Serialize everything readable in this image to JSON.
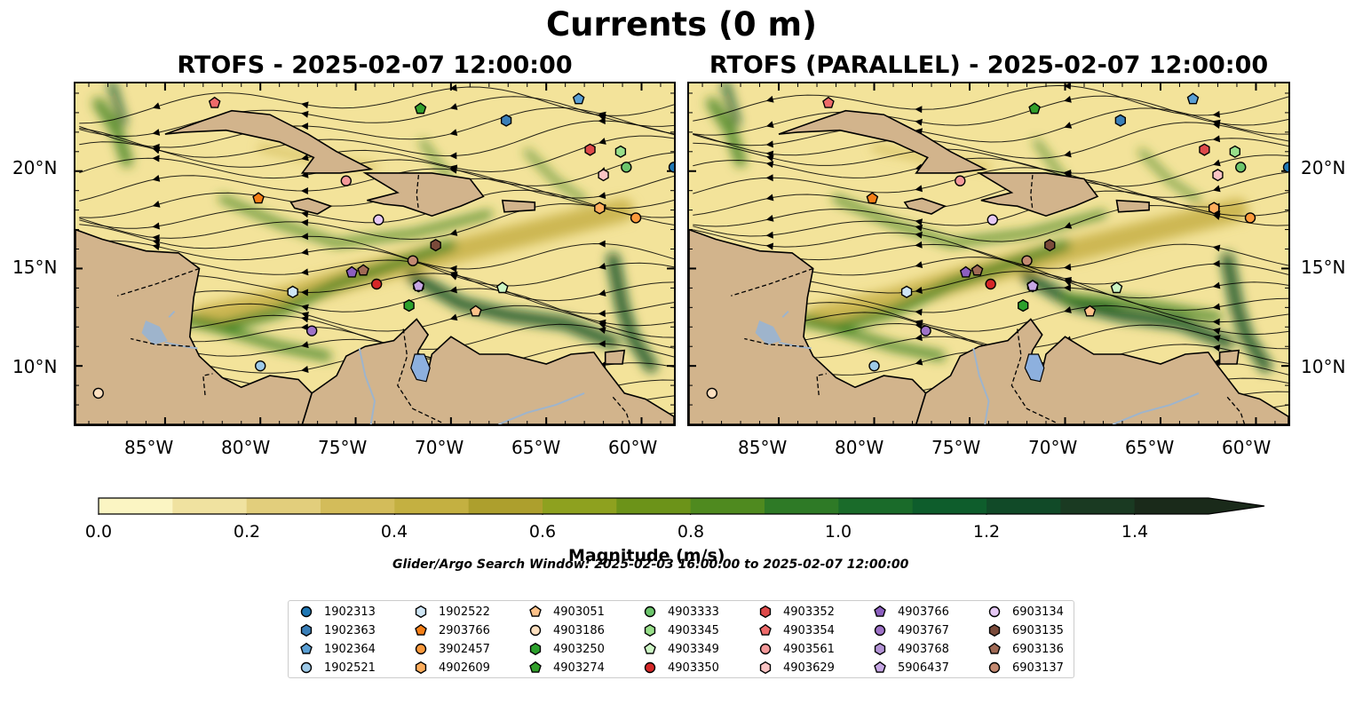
{
  "figure": {
    "title": "Currents (0 m)",
    "colorbar_label": "Magnitude (m/s)",
    "search_window": "Glider/Argo Search Window: 2025-02-03 16:00:00 to 2025-02-07 12:00:00"
  },
  "panels": [
    {
      "title": "RTOFS - 2025-02-07 12:00:00",
      "model": "RTOFS"
    },
    {
      "title": "RTOFS (PARALLEL) - 2025-02-07 12:00:00",
      "model": "RTOFS (PARALLEL)"
    }
  ],
  "axes": {
    "lon_ticks": [
      "85°W",
      "80°W",
      "75°W",
      "70°W",
      "65°W",
      "60°W"
    ],
    "lat_ticks": [
      "20°N",
      "15°N",
      "10°N"
    ],
    "lon_range": [
      -89.7,
      -58.3
    ],
    "lat_range": [
      7.0,
      24.5
    ]
  },
  "colorbar": {
    "ticks": [
      "0.0",
      "0.2",
      "0.4",
      "0.6",
      "0.8",
      "1.0",
      "1.2",
      "1.4"
    ],
    "range": [
      0.0,
      1.5
    ],
    "extend": "max",
    "colors": [
      "#fbf5c3",
      "#f0e2a0",
      "#e2ce7c",
      "#d3bc5a",
      "#c4b041",
      "#ad9f2d",
      "#8ea11f",
      "#6c9319",
      "#4f8a1f",
      "#2e7a26",
      "#1a6b2a",
      "#0e5d2c",
      "#114a28",
      "#1a3a22",
      "#1a2a1a"
    ]
  },
  "map_colors": {
    "land": "#d2b48c",
    "lake": "#8db0de",
    "river": "#9eb4cc",
    "ocean_low": "#f3e39a",
    "ocean_mid": "#c9b24a",
    "jet": "#3b7f1e",
    "jet_core": "#0d4f22"
  },
  "legend": {
    "items": [
      {
        "id": "1902313",
        "marker": "circle",
        "color": "#1f77b4"
      },
      {
        "id": "1902363",
        "marker": "hexagon",
        "color": "#3a7fb8"
      },
      {
        "id": "1902364",
        "marker": "pentagon",
        "color": "#5a9fd4"
      },
      {
        "id": "1902521",
        "marker": "circle",
        "color": "#9ecae8"
      },
      {
        "id": "1902522",
        "marker": "hexagon",
        "color": "#cfe6f5"
      },
      {
        "id": "2903766",
        "marker": "pentagon",
        "color": "#f57f17"
      },
      {
        "id": "3902457",
        "marker": "circle",
        "color": "#fb9a3c"
      },
      {
        "id": "4902609",
        "marker": "hexagon",
        "color": "#fdad5c"
      },
      {
        "id": "4903051",
        "marker": "pentagon",
        "color": "#fdc28a"
      },
      {
        "id": "4903186",
        "marker": "circle",
        "color": "#fde0c0"
      },
      {
        "id": "4903250",
        "marker": "hexagon",
        "color": "#2ca02c"
      },
      {
        "id": "4903274",
        "marker": "pentagon",
        "color": "#33a02c"
      },
      {
        "id": "4903333",
        "marker": "circle",
        "color": "#6cc56c"
      },
      {
        "id": "4903345",
        "marker": "hexagon",
        "color": "#98df8a"
      },
      {
        "id": "4903349",
        "marker": "pentagon",
        "color": "#ccf5c4"
      },
      {
        "id": "4903350",
        "marker": "circle",
        "color": "#d62728"
      },
      {
        "id": "4903352",
        "marker": "hexagon",
        "color": "#de4a4a"
      },
      {
        "id": "4903354",
        "marker": "pentagon",
        "color": "#ee6a6a"
      },
      {
        "id": "4903561",
        "marker": "circle",
        "color": "#f4999a"
      },
      {
        "id": "4903629",
        "marker": "hexagon",
        "color": "#fbc4c4"
      },
      {
        "id": "4903766",
        "marker": "pentagon",
        "color": "#8c5fbf"
      },
      {
        "id": "4903767",
        "marker": "circle",
        "color": "#9e72c7"
      },
      {
        "id": "4903768",
        "marker": "hexagon",
        "color": "#b393d6"
      },
      {
        "id": "5906437",
        "marker": "pentagon",
        "color": "#c6a6e4"
      },
      {
        "id": "6903134",
        "marker": "circle",
        "color": "#e6c8f5"
      },
      {
        "id": "6903135",
        "marker": "hexagon",
        "color": "#7a4a3a"
      },
      {
        "id": "6903136",
        "marker": "pentagon",
        "color": "#a06a55"
      },
      {
        "id": "6903137",
        "marker": "circle",
        "color": "#c48a72"
      }
    ]
  },
  "floats": [
    {
      "id": "1902313",
      "lon": -58.3,
      "lat": 20.2
    },
    {
      "id": "1902363",
      "lon": -67.1,
      "lat": 22.6
    },
    {
      "id": "1902364",
      "lon": -63.3,
      "lat": 23.7
    },
    {
      "id": "1902521",
      "lon": -80.0,
      "lat": 10.0
    },
    {
      "id": "1902522",
      "lon": -78.3,
      "lat": 13.8
    },
    {
      "id": "2903766",
      "lon": -80.1,
      "lat": 18.6
    },
    {
      "id": "3902457",
      "lon": -60.3,
      "lat": 17.6
    },
    {
      "id": "4902609",
      "lon": -62.2,
      "lat": 18.1
    },
    {
      "id": "4903051",
      "lon": -68.7,
      "lat": 12.8
    },
    {
      "id": "4903186",
      "lon": -88.5,
      "lat": 8.6
    },
    {
      "id": "4903250",
      "lon": -72.2,
      "lat": 13.1
    },
    {
      "id": "4903274",
      "lon": -71.6,
      "lat": 23.2
    },
    {
      "id": "4903333",
      "lon": -60.8,
      "lat": 20.2
    },
    {
      "id": "4903345",
      "lon": -61.1,
      "lat": 21.0
    },
    {
      "id": "4903349",
      "lon": -67.3,
      "lat": 14.0
    },
    {
      "id": "4903350",
      "lon": -73.9,
      "lat": 14.2
    },
    {
      "id": "4903352",
      "lon": -62.7,
      "lat": 21.1
    },
    {
      "id": "4903354",
      "lon": -82.4,
      "lat": 23.5
    },
    {
      "id": "4903561",
      "lon": -75.5,
      "lat": 19.5
    },
    {
      "id": "4903629",
      "lon": -62.0,
      "lat": 19.8
    },
    {
      "id": "4903766",
      "lon": -75.2,
      "lat": 14.8
    },
    {
      "id": "4903767",
      "lon": -77.3,
      "lat": 11.8
    },
    {
      "id": "4903768",
      "lon": -71.7,
      "lat": 14.1
    },
    {
      "id": "5906437",
      "lon": -71.7,
      "lat": 14.1
    },
    {
      "id": "6903134",
      "lon": -73.8,
      "lat": 17.5
    },
    {
      "id": "6903135",
      "lon": -70.8,
      "lat": 16.2
    },
    {
      "id": "6903136",
      "lon": -74.6,
      "lat": 14.9
    },
    {
      "id": "6903137",
      "lon": -72.0,
      "lat": 15.4
    }
  ]
}
